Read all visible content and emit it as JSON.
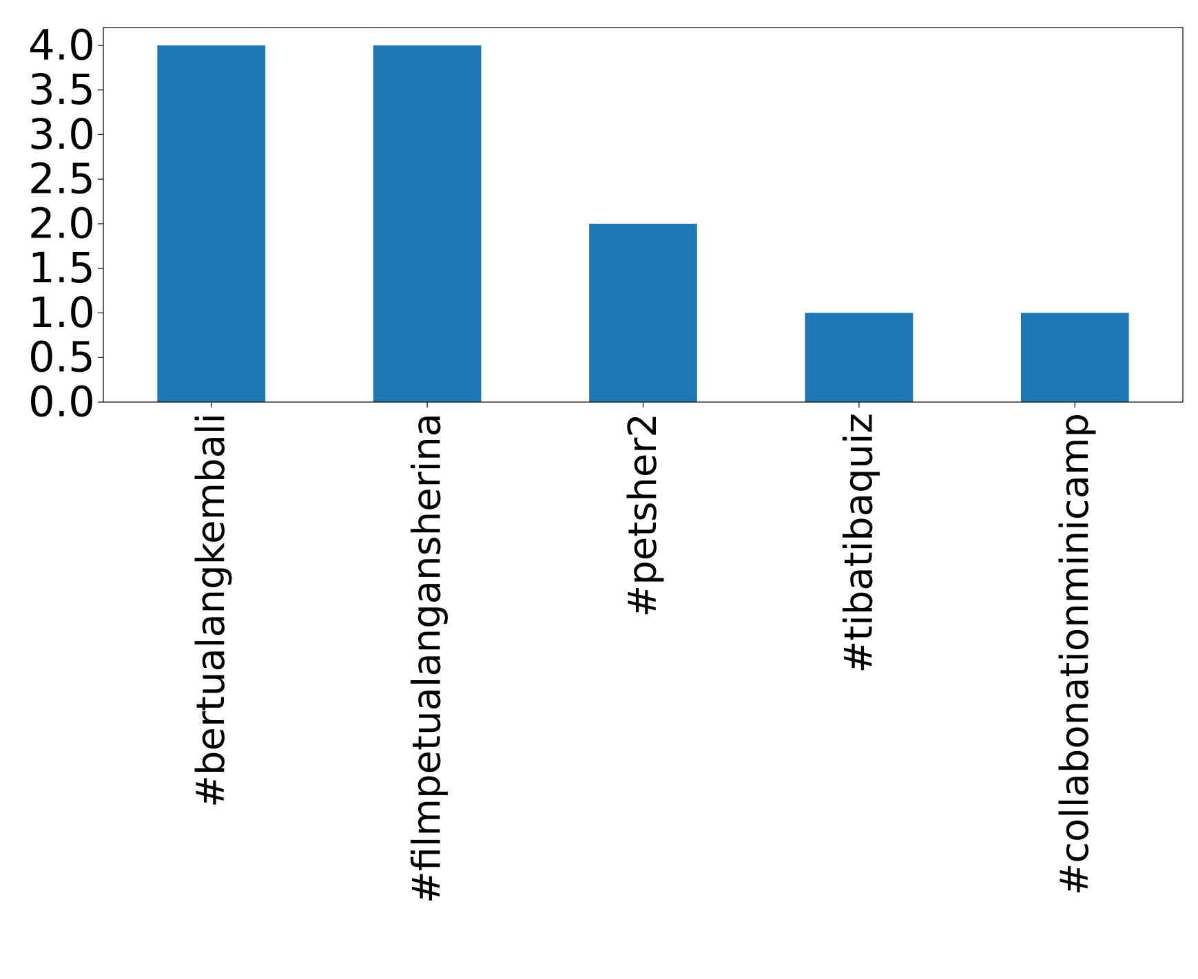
{
  "chart_data": {
    "type": "bar",
    "categories": [
      "#bertualangkembali",
      "#filmpetualangansherina",
      "#petsher2",
      "#tibatibaquiz",
      "#collabonationminicamp"
    ],
    "values": [
      4,
      4,
      2,
      1,
      1
    ],
    "color": "#1f77b4",
    "ylim": [
      0,
      4.2
    ],
    "yticks": [
      {
        "value": 0,
        "label": "0.0"
      },
      0.5,
      {
        "value": 1,
        "label": "1.0"
      },
      1.5,
      {
        "value": 2,
        "label": "2.0"
      },
      2.5,
      {
        "value": 3,
        "label": "3.0"
      },
      3.5,
      {
        "value": 4,
        "label": "4.0"
      }
    ],
    "grid": false
  }
}
